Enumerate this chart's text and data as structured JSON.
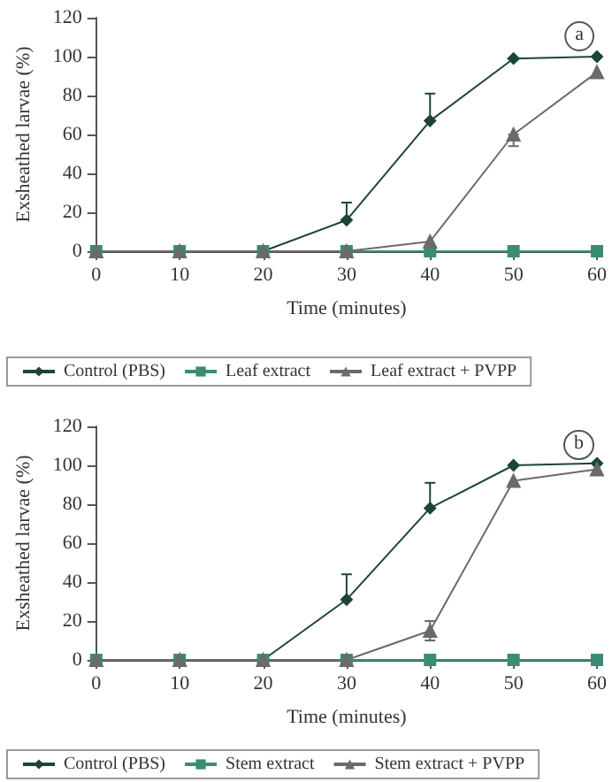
{
  "chart_data": [
    {
      "type": "line",
      "xlabel": "Time (minutes)",
      "ylabel": "Exsheathed larvae (%)",
      "annotations": [
        "a"
      ],
      "x": [
        0,
        10,
        20,
        30,
        40,
        50,
        60
      ],
      "xlim": [
        0,
        60
      ],
      "xticks": [
        0,
        10,
        20,
        30,
        40,
        50,
        60
      ],
      "ylim": [
        0,
        120
      ],
      "yticks": [
        0,
        20,
        40,
        60,
        80,
        100,
        120
      ],
      "grid": false,
      "legend": "bottom",
      "line_style": "solid",
      "series": [
        {
          "name": "Control (PBS)",
          "color": "#1d4536",
          "marker": "diamond",
          "values": [
            0,
            0,
            0,
            16,
            67,
            99,
            100
          ],
          "errors": [
            null,
            null,
            null,
            [
              16,
              25
            ],
            [
              67,
              81
            ],
            null,
            null
          ]
        },
        {
          "name": "Leaf extract",
          "color": "#3a8c74",
          "marker": "square",
          "values": [
            0,
            0,
            0,
            0,
            0,
            0,
            0
          ]
        },
        {
          "name": "Leaf extract + PVPP",
          "color": "#6a6a6a",
          "marker": "triangle",
          "values": [
            0,
            0,
            0,
            0,
            5,
            60,
            92
          ],
          "errors": [
            null,
            null,
            null,
            null,
            null,
            [
              54,
              60
            ],
            null
          ]
        }
      ]
    },
    {
      "type": "line",
      "xlabel": "Time (minutes)",
      "ylabel": "Exsheathed larvae (%)",
      "annotations": [
        "b"
      ],
      "x": [
        0,
        10,
        20,
        30,
        40,
        50,
        60
      ],
      "xlim": [
        0,
        60
      ],
      "xticks": [
        0,
        10,
        20,
        30,
        40,
        50,
        60
      ],
      "ylim": [
        0,
        120
      ],
      "yticks": [
        0,
        20,
        40,
        60,
        80,
        100,
        120
      ],
      "grid": false,
      "legend": "bottom",
      "line_style": "solid",
      "series": [
        {
          "name": "Control (PBS)",
          "color": "#1d4536",
          "marker": "diamond",
          "values": [
            0,
            0,
            0,
            31,
            78,
            100,
            101
          ],
          "errors": [
            null,
            null,
            null,
            [
              31,
              44
            ],
            [
              78,
              91
            ],
            null,
            null
          ]
        },
        {
          "name": "Stem extract",
          "color": "#3a8c74",
          "marker": "square",
          "values": [
            0,
            0,
            0,
            0,
            0,
            0,
            0
          ]
        },
        {
          "name": "Stem extract + PVPP",
          "color": "#6a6a6a",
          "marker": "triangle",
          "values": [
            0,
            0,
            0,
            0,
            15,
            92,
            98
          ],
          "errors": [
            null,
            null,
            null,
            null,
            [
              10,
              20
            ],
            null,
            null
          ]
        }
      ]
    }
  ]
}
